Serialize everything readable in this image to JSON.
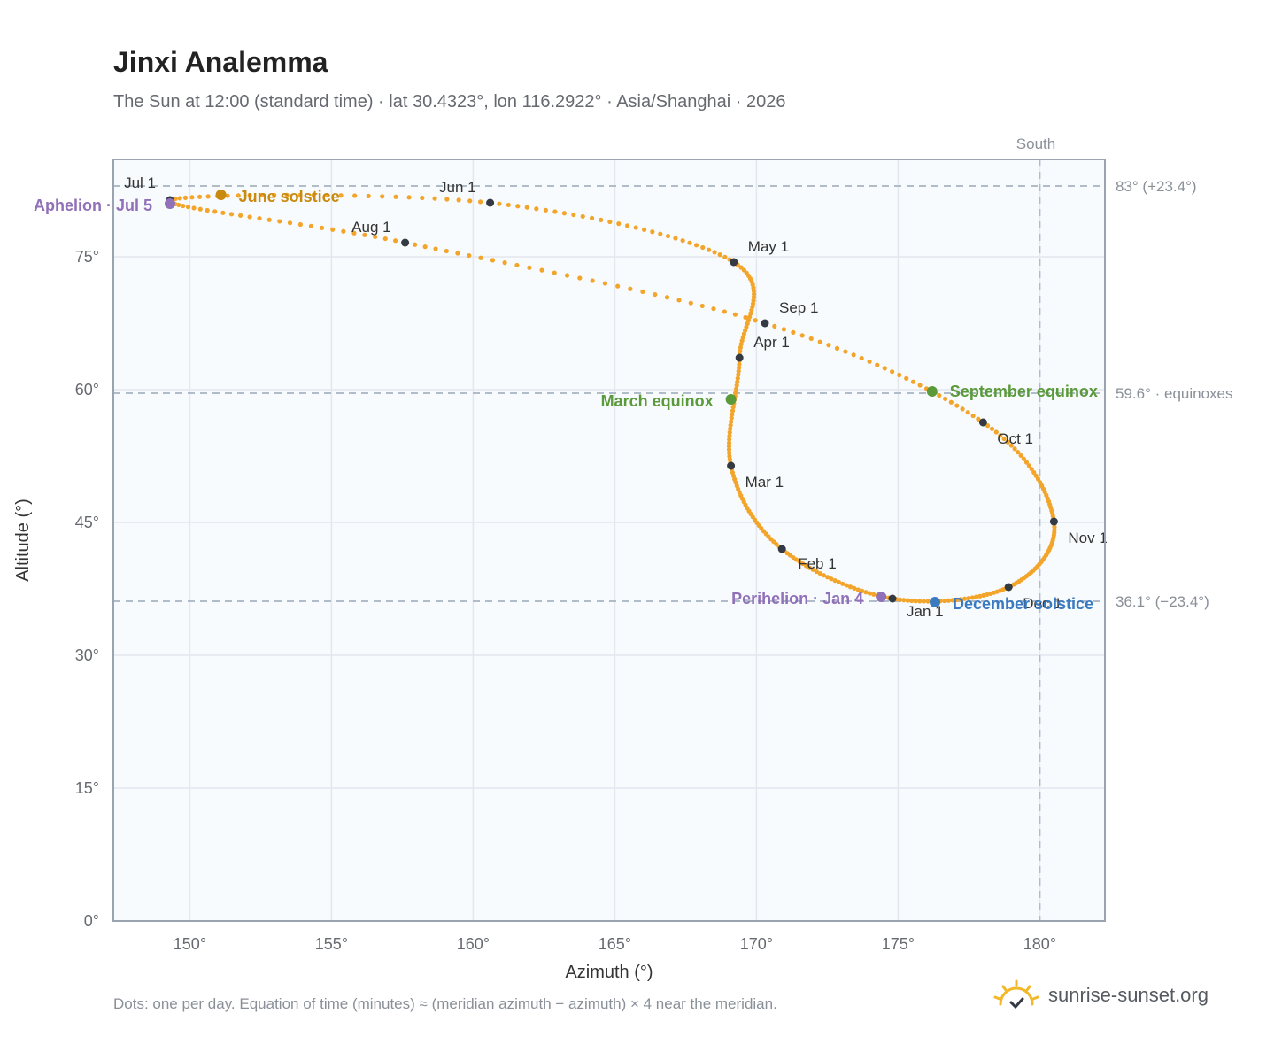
{
  "title": "Jinxi Analemma",
  "subtitle": "The Sun at 12:00 (standard time) · lat 30.4323°, lon 116.2922° · Asia/Shanghai · 2026",
  "footnote": "Dots: one per day. Equation of time (minutes) ≈ (meridian azimuth − azimuth) × 4 near the meridian.",
  "brand": {
    "text": "sunrise-sunset.org",
    "icon": "sun-logo-icon"
  },
  "colors": {
    "path": "#f2a52a",
    "marker": "#333a44",
    "june": "#c98a10",
    "equinox": "#5a9a3a",
    "december": "#3a7ac0",
    "apsis": "#9070b8",
    "refline": "#b0bcc8",
    "plotbg": "#f8fbfd",
    "grid": "#e2e8ee",
    "frame": "#9aa4b0"
  },
  "chart_data": {
    "type": "scatter",
    "xlabel": "Azimuth (°)",
    "ylabel": "Altitude (°)",
    "xlim": [
      147.3,
      182.3
    ],
    "ylim": [
      0,
      86
    ],
    "xticks": [
      150,
      155,
      160,
      165,
      170,
      175,
      180
    ],
    "xtick_labels": [
      "150°",
      "155°",
      "160°",
      "165°",
      "170°",
      "175°",
      "180°"
    ],
    "yticks": [
      0,
      15,
      30,
      45,
      60,
      75
    ],
    "ytick_labels": [
      "0°",
      "15°",
      "30°",
      "45°",
      "60°",
      "75°"
    ],
    "grid": true,
    "meridian": {
      "azimuth": 180,
      "label": "South"
    },
    "reference_lines": [
      {
        "altitude": 83.0,
        "label": "83° (+23.4°)"
      },
      {
        "altitude": 59.6,
        "label": "59.6° · equinoxes"
      },
      {
        "altitude": 36.1,
        "label": "36.1° (−23.4°)"
      }
    ],
    "months": [
      {
        "label": "Jan 1",
        "az": 174.8,
        "alt": 36.4
      },
      {
        "label": "Feb 1",
        "az": 170.9,
        "alt": 42.0
      },
      {
        "label": "Mar 1",
        "az": 169.1,
        "alt": 51.4
      },
      {
        "label": "Apr 1",
        "az": 169.4,
        "alt": 63.6
      },
      {
        "label": "May 1",
        "az": 169.2,
        "alt": 74.4
      },
      {
        "label": "Jun 1",
        "az": 160.6,
        "alt": 81.1
      },
      {
        "label": "Jul 1",
        "az": 149.3,
        "alt": 81.4
      },
      {
        "label": "Aug 1",
        "az": 157.6,
        "alt": 76.6
      },
      {
        "label": "Sep 1",
        "az": 170.3,
        "alt": 67.5
      },
      {
        "label": "Oct 1",
        "az": 178.0,
        "alt": 56.3
      },
      {
        "label": "Nov 1",
        "az": 180.5,
        "alt": 45.1
      },
      {
        "label": "Dec 1",
        "az": 178.9,
        "alt": 37.7
      }
    ],
    "events": [
      {
        "label": "June solstice",
        "az": 151.1,
        "alt": 82.0,
        "color_key": "june"
      },
      {
        "label": "Aphelion · Jul 5",
        "az": 149.3,
        "alt": 81.0,
        "color_key": "apsis"
      },
      {
        "label": "March equinox",
        "az": 169.1,
        "alt": 58.9,
        "color_key": "equinox"
      },
      {
        "label": "September equinox",
        "az": 176.2,
        "alt": 59.8,
        "color_key": "equinox"
      },
      {
        "label": "December solstice",
        "az": 176.3,
        "alt": 36.0,
        "color_key": "december"
      },
      {
        "label": "Perihelion · Jan 4",
        "az": 174.4,
        "alt": 36.6,
        "color_key": "apsis"
      }
    ]
  }
}
